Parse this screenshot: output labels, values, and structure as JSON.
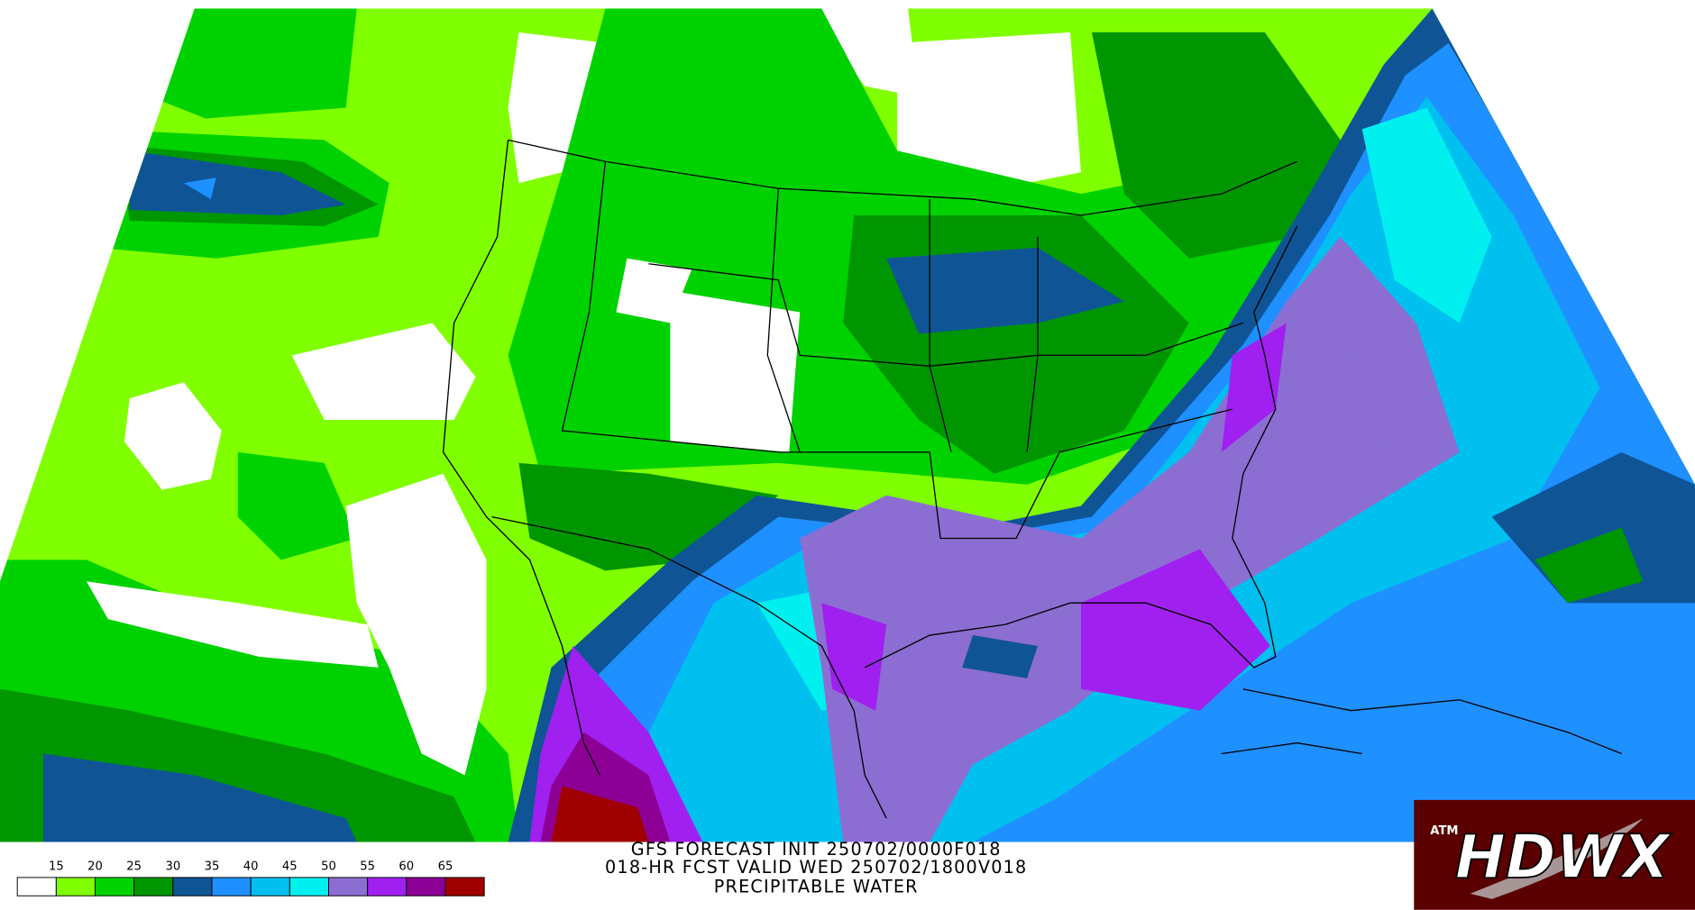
{
  "header": {
    "lines": [
      "GFS FORECAST INIT 250702/0000F018",
      "018-HR FCST VALID WED 250702/1800V018",
      "PRECIPITABLE WATER"
    ]
  },
  "legend": {
    "labels": [
      15,
      20,
      25,
      30,
      35,
      40,
      45,
      50,
      55,
      60,
      65
    ],
    "colors": [
      "#ffffff",
      "#80ff00",
      "#00d200",
      "#009600",
      "#0f5596",
      "#1e90ff",
      "#00c0f0",
      "#00f0f0",
      "#8c6ed2",
      "#a020f0",
      "#8c0096",
      "#a00000"
    ]
  },
  "logo": {
    "text": "HDWX",
    "badge": "ATM"
  }
}
